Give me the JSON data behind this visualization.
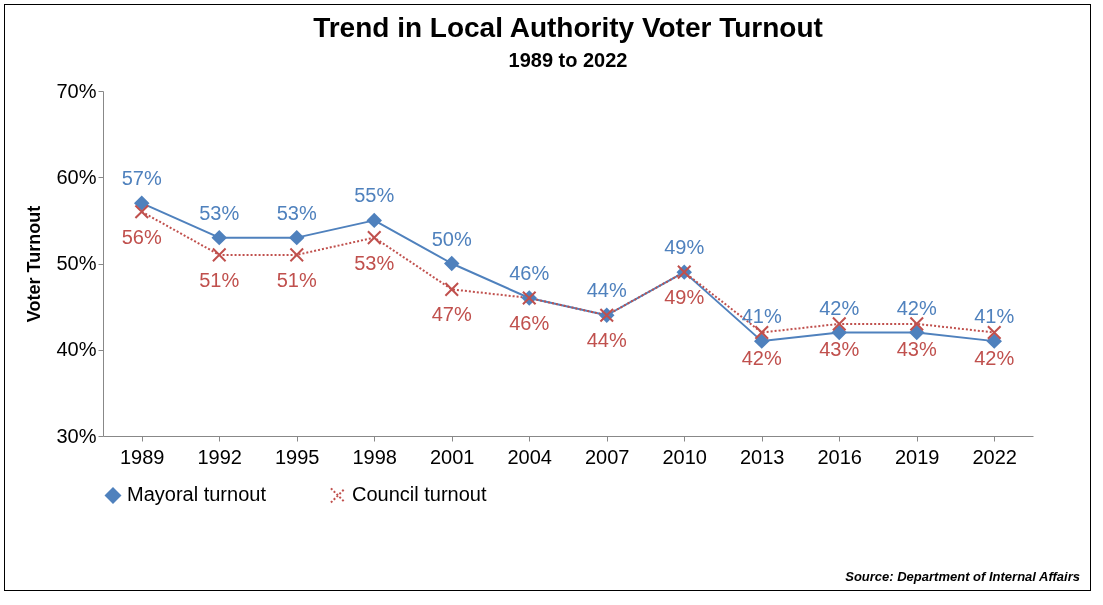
{
  "chart_data": {
    "type": "line",
    "title": "Trend in Local Authority Voter Turnout",
    "subtitle": "1989 to 2022",
    "ylabel": "Voter Turnout",
    "categories": [
      "1989",
      "1992",
      "1995",
      "1998",
      "2001",
      "2004",
      "2007",
      "2010",
      "2013",
      "2016",
      "2019",
      "2022"
    ],
    "series": [
      {
        "name": "Mayoral turnout",
        "color": "#4f81bd",
        "marker": "diamond",
        "line_style": "solid",
        "values": [
          57,
          53,
          53,
          55,
          50,
          46,
          44,
          49,
          41,
          42,
          42,
          41
        ],
        "value_labels": [
          "57%",
          "53%",
          "53%",
          "55%",
          "50%",
          "46%",
          "44%",
          "49%",
          "41%",
          "42%",
          "42%",
          "41%"
        ]
      },
      {
        "name": "Council turnout",
        "color": "#c0504d",
        "marker": "cross",
        "line_style": "dotted",
        "values": [
          56,
          51,
          51,
          53,
          47,
          46,
          44,
          49,
          42,
          43,
          43,
          42
        ],
        "value_labels": [
          "56%",
          "51%",
          "51%",
          "53%",
          "47%",
          "46%",
          "44%",
          "49%",
          "42%",
          "43%",
          "43%",
          "42%"
        ]
      }
    ],
    "ylim": [
      30,
      70
    ],
    "yticks": [
      {
        "value": 30,
        "label": "30%"
      },
      {
        "value": 40,
        "label": "40%"
      },
      {
        "value": 50,
        "label": "50%"
      },
      {
        "value": 60,
        "label": "60%"
      },
      {
        "value": 70,
        "label": "70%"
      }
    ],
    "grid": false,
    "legend": "bottom",
    "annotations": [
      "Source: Department of Internal Affairs"
    ]
  }
}
